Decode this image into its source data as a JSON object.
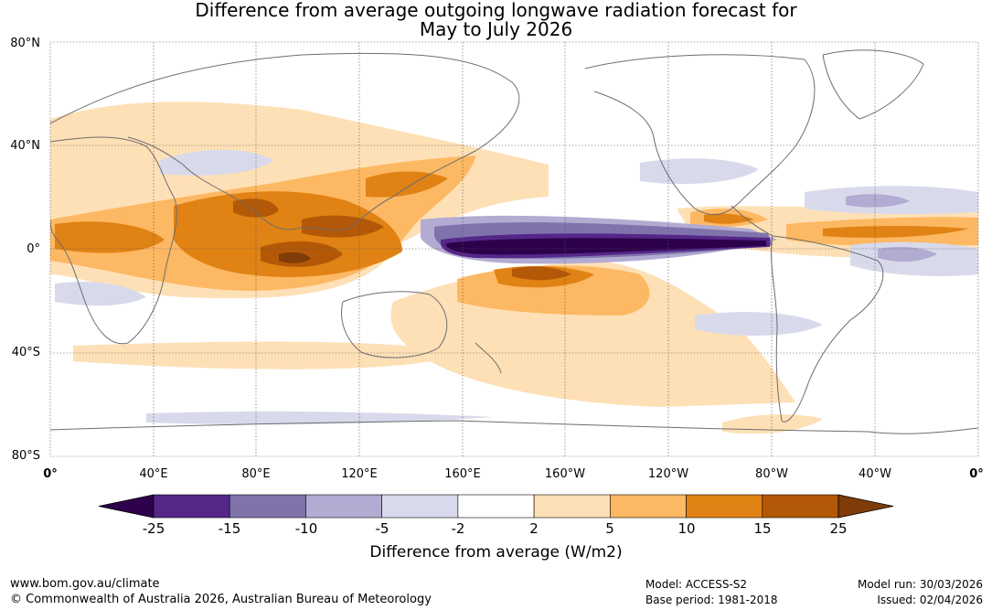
{
  "title": {
    "line1": "Difference from average outgoing longwave radiation forecast for",
    "line2": "May to July 2026"
  },
  "axes": {
    "lat_labels": [
      "80°N",
      "40°N",
      "0°",
      "40°S",
      "80°S"
    ],
    "lon_labels": [
      "0°",
      "40°E",
      "80°E",
      "120°E",
      "160°E",
      "160°W",
      "120°W",
      "80°W",
      "40°W",
      "0°"
    ]
  },
  "colorbar": {
    "ticks": [
      "-25",
      "-15",
      "-10",
      "-5",
      "-2",
      "2",
      "5",
      "10",
      "15",
      "25"
    ],
    "label": "Difference from average (W/m2)",
    "colors": [
      "#2d004b",
      "#542788",
      "#8073ac",
      "#b2abd2",
      "#d8daeb",
      "#ffffff",
      "#fee0b6",
      "#fdb863",
      "#e08214",
      "#b35806",
      "#7f3b08"
    ]
  },
  "footer": {
    "website": "www.bom.gov.au/climate",
    "copyright": "© Commonwealth of Australia 2026, Australian Bureau of Meteorology",
    "model": "Model: ACCESS-S2",
    "base_period": "Base period: 1981-2018",
    "model_run": "Model run: 30/03/2026",
    "issued": "Issued: 02/04/2026"
  }
}
